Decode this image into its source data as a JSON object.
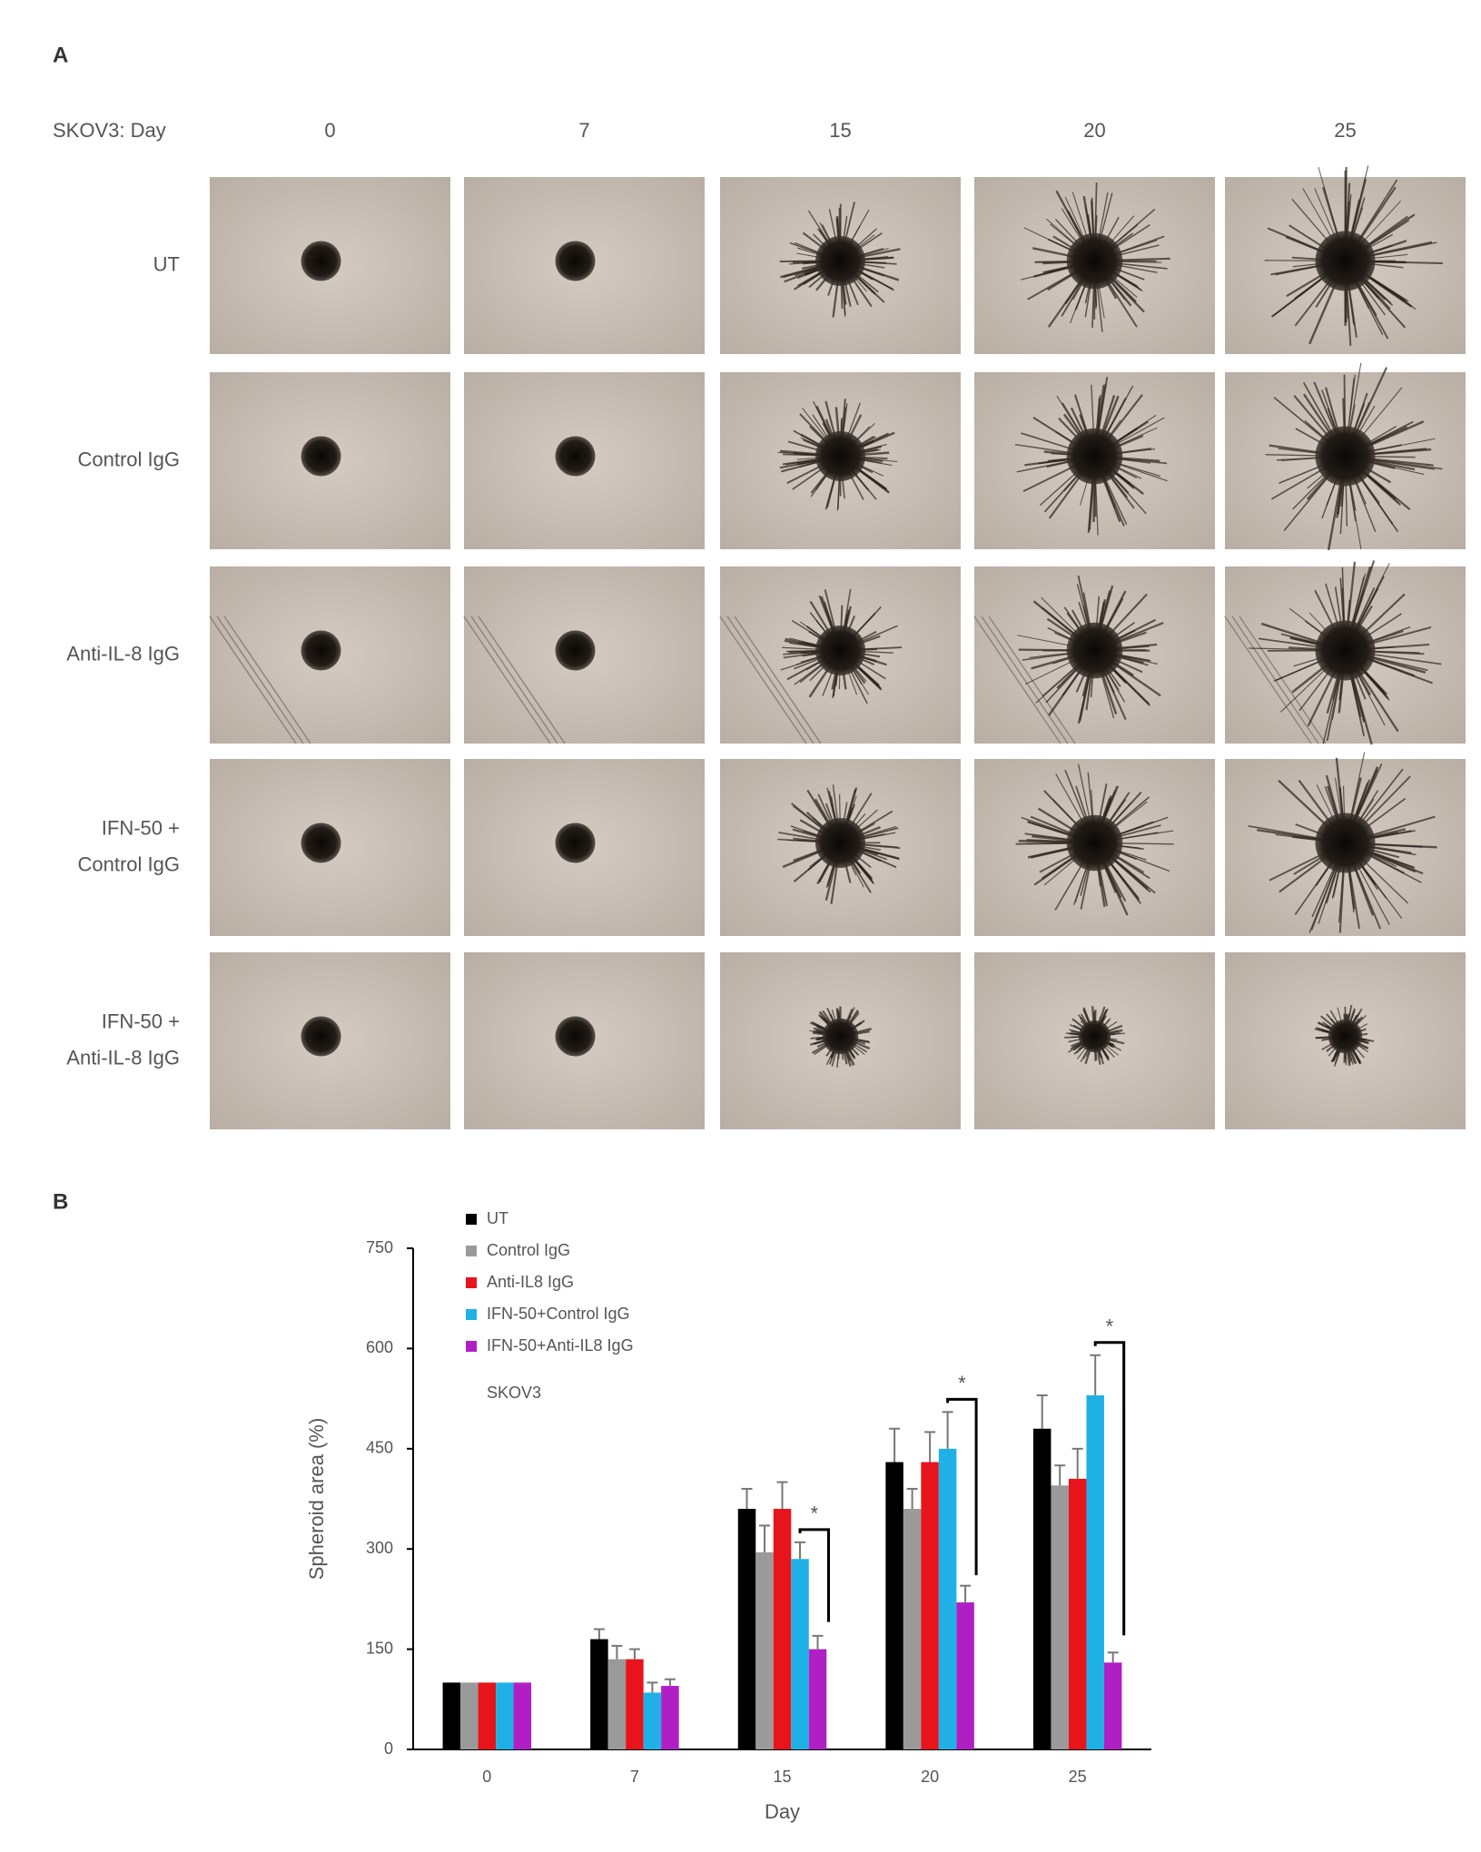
{
  "panel_a": {
    "label": "A",
    "header": "SKOV3:  Day",
    "days": [
      "0",
      "7",
      "15",
      "20",
      "25"
    ],
    "row_labels": [
      [
        "UT"
      ],
      [
        "Control IgG"
      ],
      [
        "Anti-IL-8 IgG"
      ],
      [
        "IFN-50 +",
        "Control IgG"
      ],
      [
        "IFN-50 +",
        "Anti-IL-8 IgG"
      ]
    ]
  },
  "chart_data": {
    "type": "bar",
    "label": "B",
    "ylabel": "Spheroid area (%)",
    "xlabel": "Day",
    "annotation": "SKOV3",
    "categories": [
      "0",
      "7",
      "15",
      "20",
      "25"
    ],
    "series": [
      {
        "name": "UT",
        "color": "#000000",
        "values": [
          100,
          165,
          360,
          430,
          480
        ],
        "errors": [
          0,
          15,
          30,
          50,
          50
        ]
      },
      {
        "name": "Control IgG",
        "color": "#9a9a9a",
        "values": [
          100,
          135,
          295,
          360,
          395
        ],
        "errors": [
          0,
          20,
          40,
          30,
          30
        ]
      },
      {
        "name": "Anti-IL8 IgG",
        "color": "#e8141b",
        "values": [
          100,
          135,
          360,
          430,
          405
        ],
        "errors": [
          0,
          15,
          40,
          45,
          45
        ]
      },
      {
        "name": "IFN-50+Control IgG",
        "color": "#1fb1e6",
        "values": [
          100,
          85,
          285,
          450,
          530
        ],
        "errors": [
          0,
          15,
          25,
          55,
          60
        ]
      },
      {
        "name": "IFN-50+Anti-IL8 IgG",
        "color": "#b01fc4",
        "values": [
          100,
          95,
          150,
          220,
          130
        ],
        "errors": [
          0,
          10,
          20,
          25,
          15
        ]
      }
    ],
    "significance": [
      null,
      null,
      "*",
      "*",
      "*"
    ],
    "ylim": [
      0,
      750
    ],
    "yticks": [
      0,
      150,
      300,
      450,
      600,
      750
    ]
  }
}
